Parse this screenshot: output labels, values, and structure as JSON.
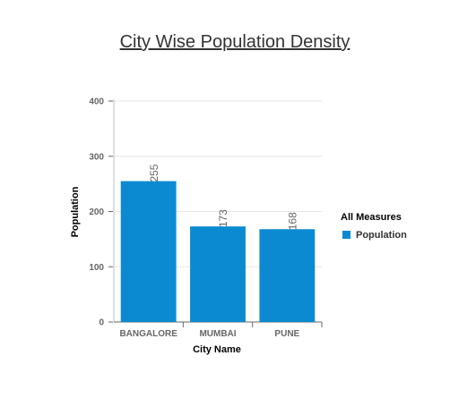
{
  "chart_data": {
    "type": "bar",
    "title": "City Wise Population Density",
    "xlabel": "City Name",
    "ylabel": "Population",
    "categories": [
      "BANGALORE",
      "MUMBAI",
      "PUNE"
    ],
    "series": [
      {
        "name": "Population",
        "values": [
          255,
          173,
          168
        ]
      }
    ],
    "data_labels": [
      "255",
      "173",
      "168"
    ],
    "ylim": [
      0,
      400
    ],
    "yticks": [
      "0",
      "100",
      "200",
      "300",
      "400"
    ],
    "grid": true,
    "legend": {
      "title": "All Measures",
      "placement": "right"
    },
    "colors": {
      "bar": "#0b8ad1"
    }
  }
}
